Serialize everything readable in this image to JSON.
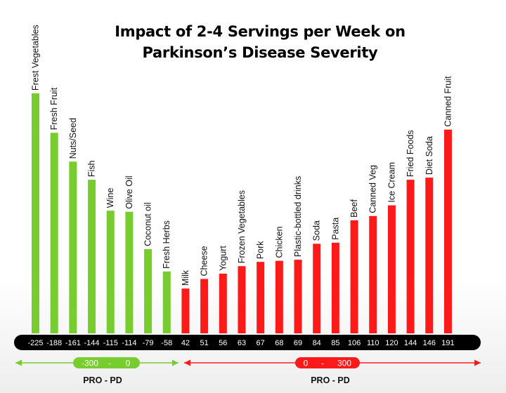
{
  "title_line1": "Impact of 2-4 Servings per Week on",
  "title_line2": "Parkinson’s Disease Severity",
  "colors": {
    "beneficial": "#77cc2e",
    "harmful": "#ff1a1a",
    "value_bar": "#000000"
  },
  "chart_data": {
    "type": "bar",
    "title": "Impact of 2-4 Servings per Week on Parkinson’s Disease Severity",
    "categories": [
      "Frest Vegetables",
      "Fresh Fruit",
      "Nuts/Seed",
      "Fish",
      "Wine",
      "Olive Oil",
      "Coconut oil",
      "Fresh Herbs",
      "Milk",
      "Cheese",
      "Yogurt",
      "Frozen Vegetables",
      "Pork",
      "Chicken",
      "Plastic-bottled drinks",
      "Soda",
      "Pasta",
      "Beef",
      "Canned Veg",
      "Ice Cream",
      "Fried Foods",
      "Diet Soda",
      "Canned Fruit"
    ],
    "values": [
      -225,
      -188,
      -161,
      -144,
      -115,
      -114,
      -79,
      -58,
      42,
      51,
      56,
      63,
      67,
      68,
      69,
      84,
      85,
      106,
      110,
      120,
      144,
      146,
      191
    ],
    "value_labels": [
      "-225",
      "-188",
      "-161",
      "-144",
      "-115",
      "-114",
      "-79",
      "-58",
      "42",
      "51",
      "56",
      "63",
      "67",
      "68",
      "69",
      "84",
      "85",
      "106",
      "110",
      "120",
      "144",
      "146",
      "191"
    ],
    "legend": [
      {
        "name": "PRO - PD",
        "range_from": "-300",
        "range_sep": "-",
        "range_to": "0",
        "color": "#77cc2e"
      },
      {
        "name": "PRO - PD",
        "range_from": "0",
        "range_sep": "-",
        "range_to": "300",
        "color": "#ff1a1a"
      }
    ],
    "xlabel": "",
    "ylabel": "",
    "grid": false
  }
}
